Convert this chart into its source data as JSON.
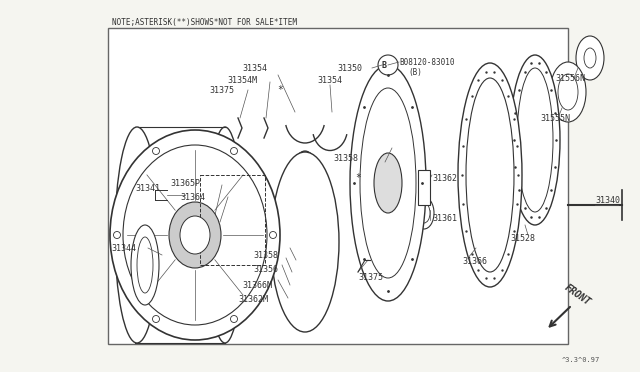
{
  "background_color": "#f5f5f0",
  "border_color": "#888888",
  "dk": "#333333",
  "gray": "#666666",
  "note_text": "NOTE;ASTERISK(**)SHOWS*NOT FOR SALE*ITEM",
  "watermark": "^3.3^0.97",
  "front_label": "FRONT",
  "fig_w": 6.4,
  "fig_h": 3.72,
  "dpi": 100
}
